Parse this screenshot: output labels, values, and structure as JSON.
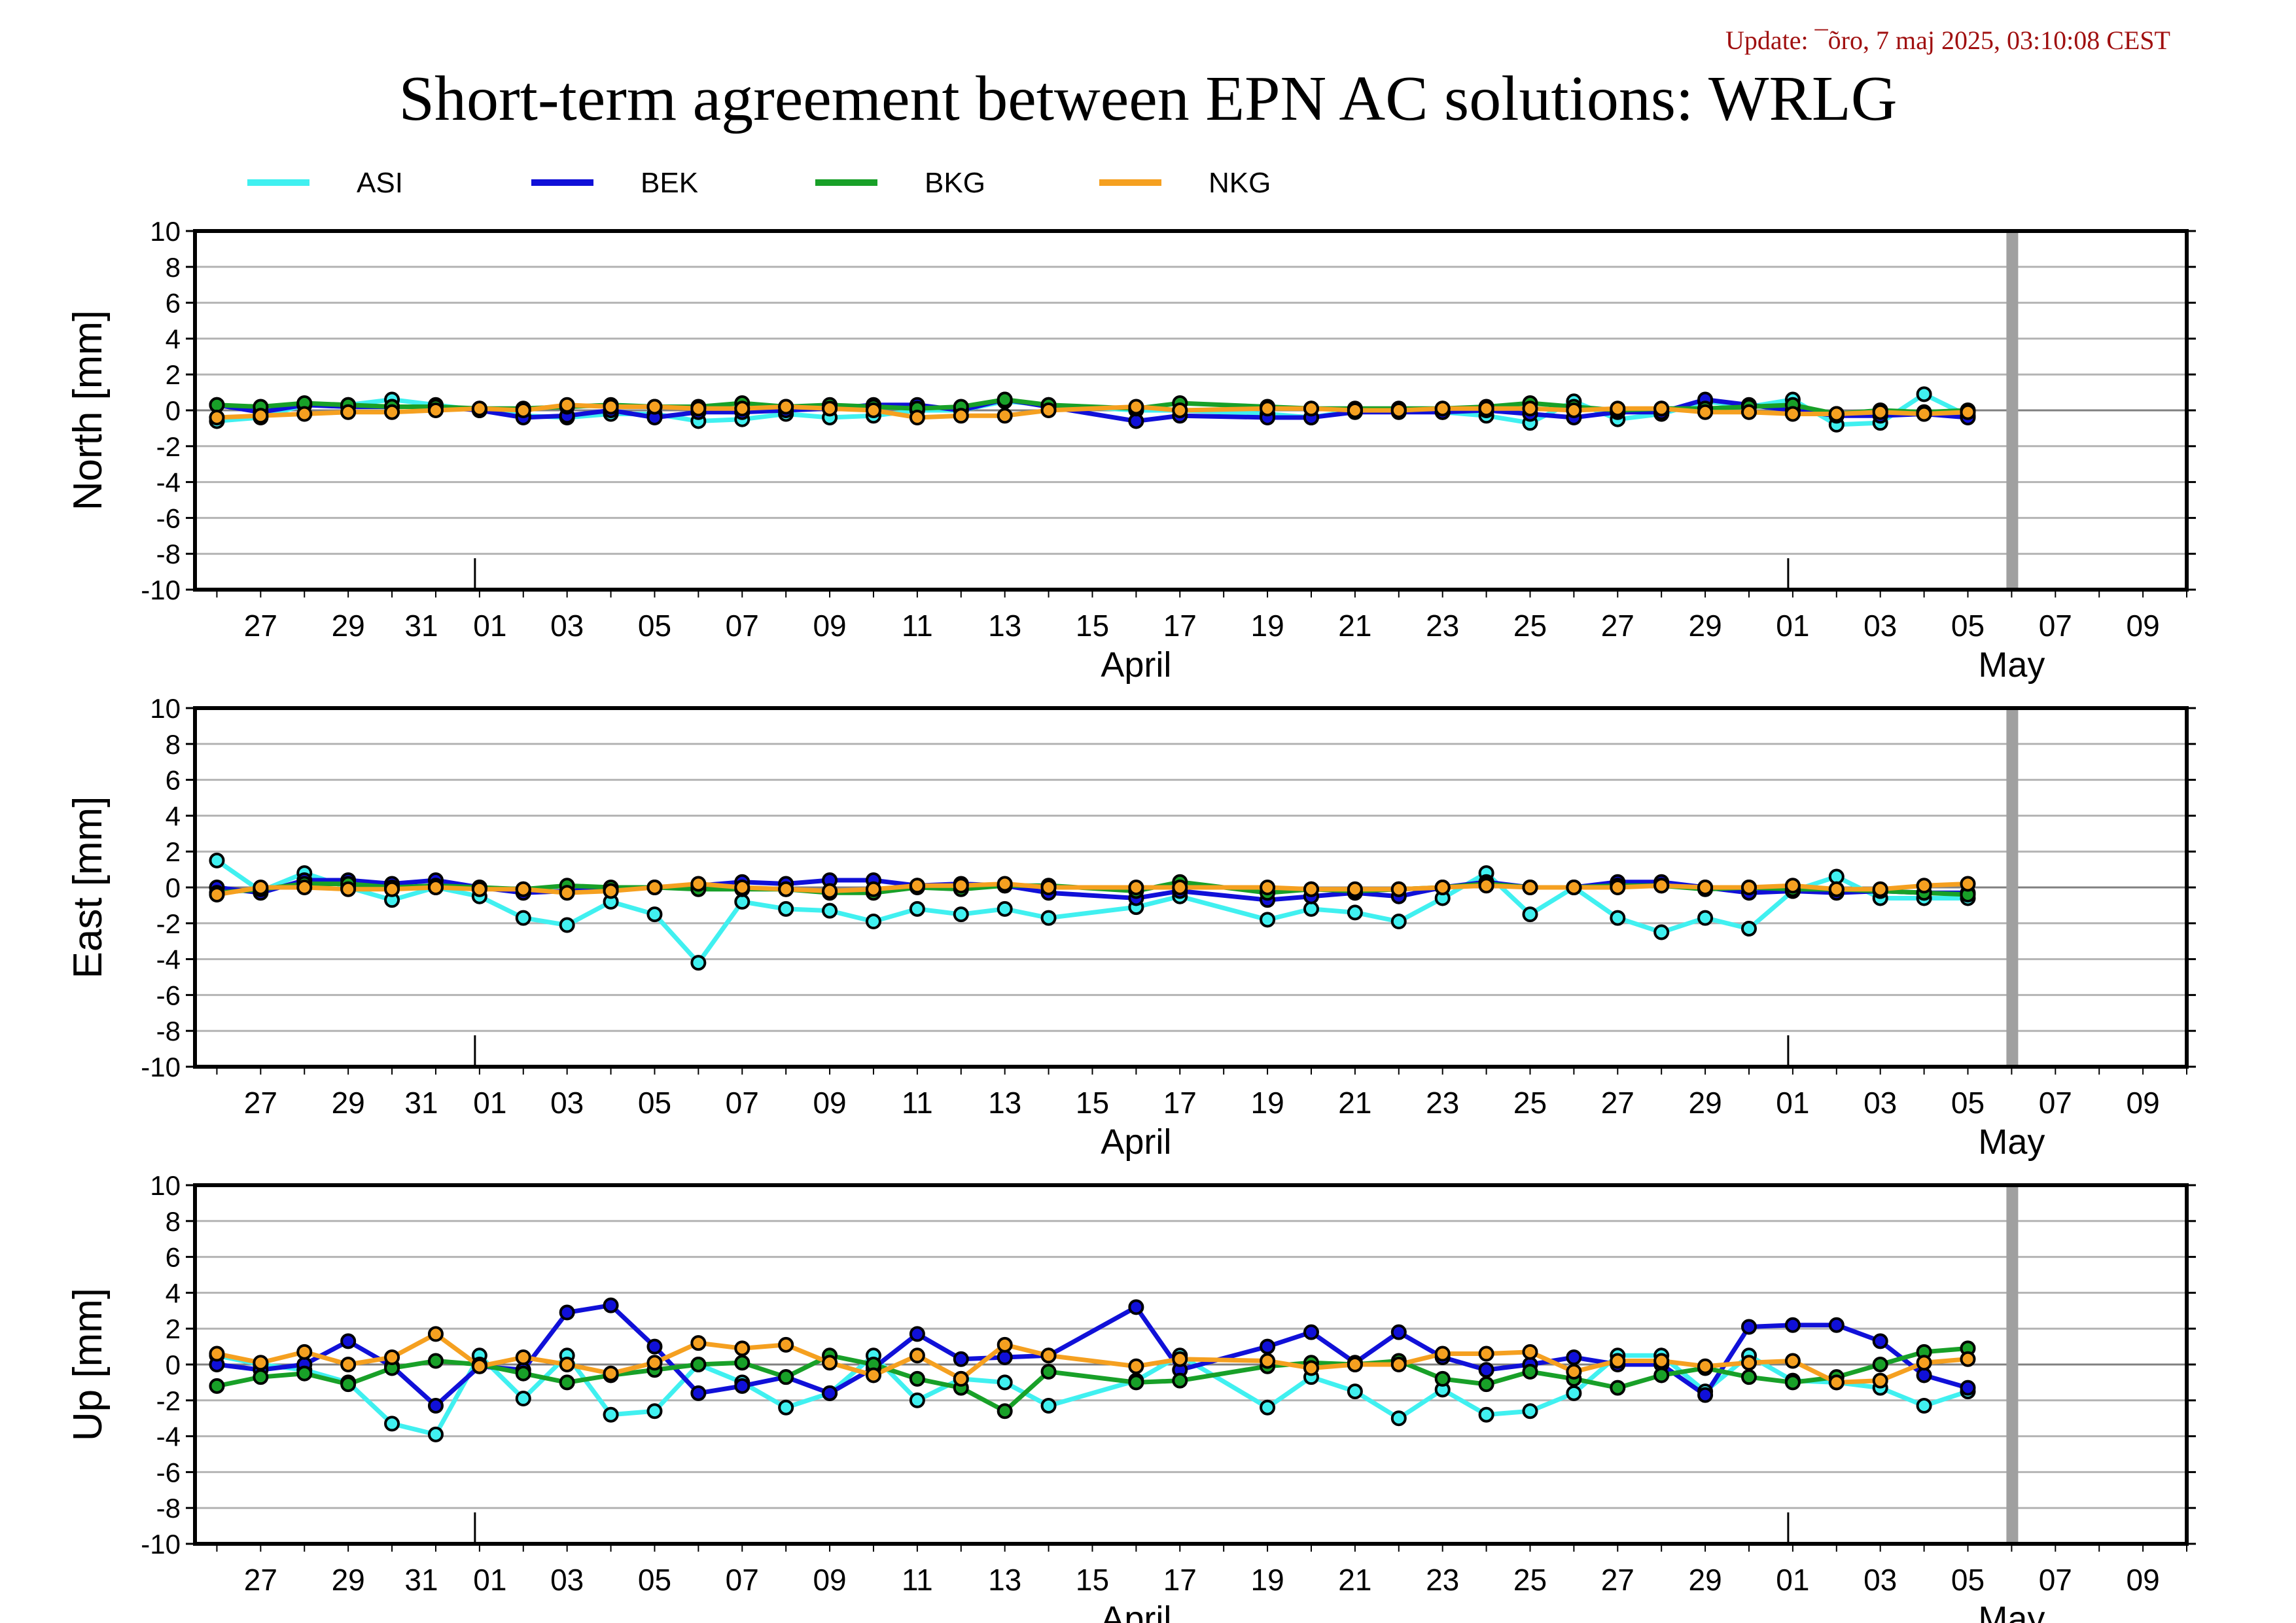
{
  "update_label": "Update: ¯õro, 7 maj 2025, 03:10:08 CEST",
  "title": "Short-term agreement between EPN AC solutions: WRLG",
  "colors": {
    "ASI": "#40f0f0",
    "BEK": "#1010d8",
    "BKG": "#18a028",
    "NKG": "#f5a020",
    "update_text": "#a01010",
    "future_band": "#a0a0a0"
  },
  "chart_data": {
    "type": "line",
    "x_type": "date",
    "xlim": [
      "2025-03-25T12:00",
      "2025-05-10T00:00"
    ],
    "ylim": [
      -10,
      10
    ],
    "yticks": [
      10,
      8,
      6,
      4,
      2,
      0,
      -2,
      -4,
      -6,
      -8,
      -10
    ],
    "grid": true,
    "legend_position": "top",
    "x_tick_labels": [
      {
        "date": "2025-03-27",
        "label": "27"
      },
      {
        "date": "2025-03-29",
        "label": "29"
      },
      {
        "date": "2025-03-31",
        "label": "31"
      },
      {
        "date": "2025-04-01",
        "label": "01"
      },
      {
        "date": "2025-04-03",
        "label": "03"
      },
      {
        "date": "2025-04-05",
        "label": "05"
      },
      {
        "date": "2025-04-07",
        "label": "07"
      },
      {
        "date": "2025-04-09",
        "label": "09"
      },
      {
        "date": "2025-04-11",
        "label": "11"
      },
      {
        "date": "2025-04-13",
        "label": "13"
      },
      {
        "date": "2025-04-15",
        "label": "15"
      },
      {
        "date": "2025-04-17",
        "label": "17"
      },
      {
        "date": "2025-04-19",
        "label": "19"
      },
      {
        "date": "2025-04-21",
        "label": "21"
      },
      {
        "date": "2025-04-23",
        "label": "23"
      },
      {
        "date": "2025-04-25",
        "label": "25"
      },
      {
        "date": "2025-04-27",
        "label": "27"
      },
      {
        "date": "2025-04-29",
        "label": "29"
      },
      {
        "date": "2025-05-01",
        "label": "01"
      },
      {
        "date": "2025-05-03",
        "label": "03"
      },
      {
        "date": "2025-05-05",
        "label": "05"
      },
      {
        "date": "2025-05-07",
        "label": "07"
      },
      {
        "date": "2025-05-09",
        "label": "09"
      }
    ],
    "month_labels": [
      {
        "date": "2025-04-16",
        "label": "April"
      },
      {
        "date": "2025-05-06",
        "label": "May"
      }
    ],
    "month_boundaries": [
      "2025-04-01",
      "2025-05-01"
    ],
    "future_marker": "2025-05-06",
    "x": [
      "2025-03-26",
      "2025-03-27",
      "2025-03-28",
      "2025-03-29",
      "2025-03-30",
      "2025-03-31",
      "2025-04-01",
      "2025-04-02",
      "2025-04-03",
      "2025-04-04",
      "2025-04-05",
      "2025-04-06",
      "2025-04-07",
      "2025-04-08",
      "2025-04-09",
      "2025-04-10",
      "2025-04-11",
      "2025-04-12",
      "2025-04-13",
      "2025-04-14",
      "2025-04-16",
      "2025-04-17",
      "2025-04-19",
      "2025-04-20",
      "2025-04-21",
      "2025-04-22",
      "2025-04-23",
      "2025-04-24",
      "2025-04-25",
      "2025-04-26",
      "2025-04-27",
      "2025-04-28",
      "2025-04-29",
      "2025-04-30",
      "2025-05-01",
      "2025-05-02",
      "2025-05-03",
      "2025-05-04",
      "2025-05-05"
    ],
    "panels": [
      {
        "name": "north",
        "ylabel": "North [mm]",
        "series": [
          {
            "name": "ASI",
            "values": [
              -0.6,
              -0.4,
              0.3,
              0.3,
              0.6,
              0.3,
              0.0,
              -0.3,
              -0.4,
              -0.2,
              -0.2,
              -0.6,
              -0.5,
              -0.2,
              -0.4,
              -0.3,
              0.0,
              0.0,
              0.5,
              0.3,
              0.0,
              0.0,
              -0.2,
              -0.4,
              0.0,
              0.0,
              -0.1,
              -0.3,
              -0.7,
              0.5,
              -0.5,
              -0.2,
              0.5,
              0.2,
              0.6,
              -0.8,
              -0.7,
              0.9,
              -0.3
            ]
          },
          {
            "name": "BEK",
            "values": [
              0.3,
              -0.1,
              0.3,
              0.2,
              0.2,
              0.2,
              0.0,
              -0.4,
              -0.3,
              0.0,
              -0.4,
              -0.1,
              -0.1,
              0.0,
              0.1,
              0.3,
              0.3,
              0.0,
              0.6,
              0.2,
              -0.6,
              -0.3,
              -0.4,
              -0.4,
              -0.1,
              -0.1,
              -0.1,
              0.0,
              -0.2,
              -0.4,
              -0.1,
              -0.1,
              0.6,
              0.3,
              0.0,
              -0.3,
              -0.3,
              -0.2,
              -0.4
            ]
          },
          {
            "name": "BKG",
            "values": [
              0.3,
              0.2,
              0.4,
              0.3,
              0.2,
              0.2,
              0.1,
              0.1,
              0.2,
              0.3,
              0.2,
              0.2,
              0.4,
              0.2,
              0.3,
              0.2,
              0.1,
              0.2,
              0.6,
              0.3,
              0.1,
              0.4,
              0.2,
              0.1,
              0.1,
              0.1,
              0.1,
              0.2,
              0.4,
              0.2,
              0.0,
              0.1,
              0.1,
              0.2,
              0.3,
              -0.2,
              0.0,
              -0.1,
              0.0
            ]
          },
          {
            "name": "NKG",
            "values": [
              -0.4,
              -0.3,
              -0.2,
              -0.1,
              -0.1,
              0.0,
              0.1,
              0.0,
              0.3,
              0.2,
              0.2,
              0.1,
              0.1,
              0.2,
              0.1,
              0.0,
              -0.4,
              -0.3,
              -0.3,
              0.0,
              0.2,
              0.0,
              0.1,
              0.1,
              0.0,
              0.0,
              0.1,
              0.1,
              0.1,
              0.0,
              0.1,
              0.1,
              -0.1,
              -0.1,
              -0.2,
              -0.2,
              -0.1,
              -0.2,
              -0.1
            ]
          }
        ]
      },
      {
        "name": "east",
        "ylabel": "East [mm]",
        "series": [
          {
            "name": "ASI",
            "values": [
              1.5,
              -0.2,
              0.8,
              0.0,
              -0.7,
              0.0,
              -0.5,
              -1.7,
              -2.1,
              -0.8,
              -1.5,
              -4.2,
              -0.8,
              -1.2,
              -1.3,
              -1.9,
              -1.2,
              -1.5,
              -1.2,
              -1.7,
              -1.1,
              -0.5,
              -1.8,
              -1.2,
              -1.4,
              -1.9,
              -0.6,
              0.8,
              -1.5,
              0.0,
              -1.7,
              -2.5,
              -1.7,
              -2.3,
              -0.2,
              0.6,
              -0.6,
              -0.6,
              -0.6
            ]
          },
          {
            "name": "BEK",
            "values": [
              0.0,
              -0.3,
              0.4,
              0.4,
              0.2,
              0.4,
              0.0,
              -0.3,
              -0.2,
              -0.1,
              0.0,
              0.1,
              0.3,
              0.2,
              0.4,
              0.4,
              0.1,
              0.2,
              0.1,
              -0.3,
              -0.6,
              -0.2,
              -0.7,
              -0.5,
              -0.3,
              -0.5,
              0.0,
              0.3,
              0.0,
              0.0,
              0.3,
              0.3,
              0.0,
              -0.3,
              -0.2,
              -0.3,
              -0.2,
              -0.3,
              -0.3
            ]
          },
          {
            "name": "BKG",
            "values": [
              -0.3,
              -0.1,
              0.2,
              0.2,
              0.0,
              0.1,
              0.0,
              -0.1,
              0.1,
              0.0,
              0.0,
              -0.1,
              -0.1,
              -0.1,
              -0.3,
              -0.3,
              0.0,
              -0.1,
              0.1,
              0.1,
              -0.2,
              0.3,
              -0.3,
              -0.1,
              -0.2,
              -0.1,
              0.0,
              0.2,
              0.0,
              0.0,
              0.1,
              0.1,
              -0.1,
              0.0,
              -0.1,
              -0.1,
              -0.2,
              -0.3,
              -0.4
            ]
          },
          {
            "name": "NKG",
            "values": [
              -0.4,
              0.0,
              0.0,
              -0.1,
              -0.1,
              0.0,
              -0.1,
              -0.1,
              -0.3,
              -0.2,
              0.0,
              0.2,
              0.0,
              -0.1,
              -0.2,
              -0.1,
              0.1,
              0.1,
              0.2,
              0.0,
              0.0,
              0.0,
              0.0,
              -0.1,
              -0.1,
              -0.1,
              0.0,
              0.1,
              0.0,
              0.0,
              0.0,
              0.1,
              0.0,
              0.0,
              0.1,
              -0.1,
              -0.1,
              0.1,
              0.2
            ]
          }
        ]
      },
      {
        "name": "up",
        "ylabel": "Up [mm]",
        "series": [
          {
            "name": "ASI",
            "values": [
              0.5,
              0.0,
              -0.3,
              -1.0,
              -3.3,
              -3.9,
              0.5,
              -1.9,
              0.5,
              -2.8,
              -2.6,
              0.0,
              -1.0,
              -2.4,
              -1.6,
              0.5,
              -2.0,
              -0.8,
              -1.0,
              -2.3,
              -0.9,
              0.5,
              -2.4,
              -0.7,
              -1.5,
              -3.0,
              -1.4,
              -2.8,
              -2.6,
              -1.6,
              0.5,
              0.5,
              -1.5,
              0.5,
              -0.9,
              -1.0,
              -1.3,
              -2.3,
              -1.5
            ]
          },
          {
            "name": "BEK",
            "values": [
              0.0,
              -0.3,
              0.0,
              1.3,
              -0.1,
              -2.3,
              -0.1,
              -0.3,
              2.9,
              3.3,
              1.0,
              -1.6,
              -1.2,
              -0.7,
              -1.6,
              -0.2,
              1.7,
              0.3,
              0.4,
              0.5,
              3.2,
              -0.3,
              1.0,
              1.8,
              0.1,
              1.8,
              0.4,
              -0.3,
              0.0,
              0.4,
              0.0,
              0.0,
              -1.7,
              2.1,
              2.2,
              2.2,
              1.3,
              -0.6,
              -1.3
            ]
          },
          {
            "name": "BKG",
            "values": [
              -1.2,
              -0.7,
              -0.5,
              -1.1,
              -0.2,
              0.2,
              0.0,
              -0.5,
              -1.0,
              -0.6,
              -0.3,
              0.0,
              0.1,
              -0.7,
              0.5,
              0.0,
              -0.8,
              -1.3,
              -2.6,
              -0.4,
              -1.0,
              -0.9,
              -0.1,
              0.1,
              0.0,
              0.2,
              -0.8,
              -1.1,
              -0.4,
              -0.8,
              -1.3,
              -0.6,
              -0.2,
              -0.7,
              -1.0,
              -0.7,
              0.0,
              0.7,
              0.9
            ]
          },
          {
            "name": "NKG",
            "values": [
              0.6,
              0.1,
              0.7,
              0.0,
              0.4,
              1.7,
              -0.1,
              0.4,
              0.0,
              -0.5,
              0.1,
              1.2,
              0.9,
              1.1,
              0.1,
              -0.6,
              0.5,
              -0.8,
              1.1,
              0.5,
              -0.1,
              0.3,
              0.2,
              -0.2,
              0.0,
              0.0,
              0.6,
              0.6,
              0.7,
              -0.4,
              0.2,
              0.2,
              -0.1,
              0.1,
              0.2,
              -1.0,
              -0.9,
              0.1,
              0.3
            ]
          }
        ]
      }
    ],
    "legend": [
      "ASI",
      "BEK",
      "BKG",
      "NKG"
    ]
  }
}
